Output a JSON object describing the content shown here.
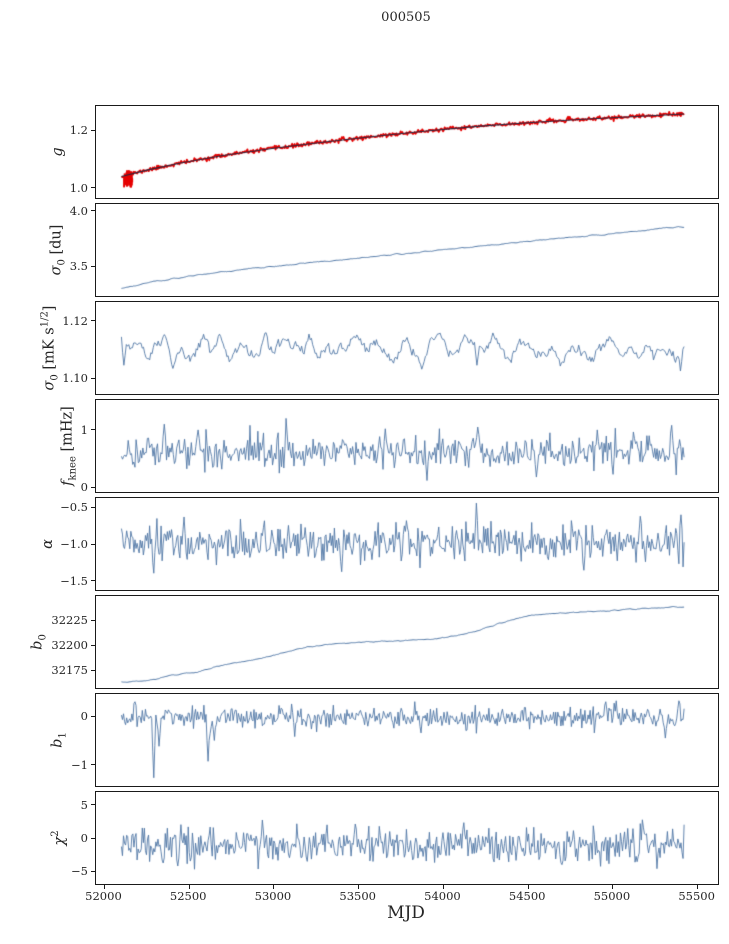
{
  "chart_data": {
    "type": "line",
    "title": "000505",
    "xlabel": "MJD",
    "grid": false,
    "legend": "none",
    "xlim": [
      51950,
      55620
    ],
    "x_data_range": [
      52100,
      55420
    ],
    "xticks": [
      {
        "v": 52000,
        "label": "52000"
      },
      {
        "v": 52500,
        "label": "52500"
      },
      {
        "v": 53000,
        "label": "53000"
      },
      {
        "v": 53500,
        "label": "53500"
      },
      {
        "v": 54000,
        "label": "54000"
      },
      {
        "v": 54500,
        "label": "54500"
      },
      {
        "v": 55000,
        "label": "55000"
      },
      {
        "v": 55500,
        "label": "55500"
      }
    ],
    "panels": [
      {
        "id": "g",
        "ylabel": [
          {
            "t": "g",
            "s": "it"
          }
        ],
        "ylim": [
          0.965,
          1.285
        ],
        "yticks": [
          {
            "v": 1.2,
            "label": "1.2"
          },
          {
            "v": 1.0,
            "label": "1.0"
          }
        ],
        "series": [
          {
            "kind": "curve",
            "color": "#e60000",
            "lw": 1.8,
            "noise_std": 0.0035,
            "n": 680,
            "seed": 11,
            "points": [
              [
                52100,
                1.04
              ],
              [
                52250,
                1.062
              ],
              [
                52450,
                1.087
              ],
              [
                52700,
                1.113
              ],
              [
                53000,
                1.138
              ],
              [
                53300,
                1.16
              ],
              [
                53600,
                1.18
              ],
              [
                53900,
                1.198
              ],
              [
                54200,
                1.214
              ],
              [
                54500,
                1.227
              ],
              [
                54800,
                1.238
              ],
              [
                55050,
                1.246
              ],
              [
                55250,
                1.252
              ],
              [
                55420,
                1.257
              ]
            ]
          },
          {
            "kind": "cluster",
            "color": "#e60000",
            "x": 52140,
            "xjitter": 25,
            "y0": 1.0,
            "y1": 1.062,
            "n": 26,
            "seed": 7,
            "lw": 2
          },
          {
            "kind": "cluster",
            "color": "#e60000",
            "x": 55390,
            "xjitter": 20,
            "y0": 1.247,
            "y1": 1.263,
            "n": 9,
            "seed": 9,
            "lw": 2
          },
          {
            "kind": "curve",
            "color": "#26263e",
            "lw": 1.1,
            "noise_std": 0,
            "points": [
              [
                52100,
                1.04
              ],
              [
                52250,
                1.062
              ],
              [
                52450,
                1.087
              ],
              [
                52700,
                1.113
              ],
              [
                53000,
                1.138
              ],
              [
                53300,
                1.16
              ],
              [
                53600,
                1.18
              ],
              [
                53900,
                1.198
              ],
              [
                54200,
                1.214
              ],
              [
                54500,
                1.227
              ],
              [
                54800,
                1.238
              ],
              [
                55050,
                1.246
              ],
              [
                55250,
                1.252
              ],
              [
                55420,
                1.257
              ]
            ]
          }
        ]
      },
      {
        "id": "sigma0-du",
        "ylabel": [
          {
            "t": "σ",
            "s": "it"
          },
          {
            "t": "0",
            "s": "sub"
          },
          {
            "t": " [du]",
            "s": "n"
          }
        ],
        "ylim": [
          3.23,
          4.06
        ],
        "yticks": [
          {
            "v": 4.0,
            "label": "4.0"
          },
          {
            "v": 3.5,
            "label": "3.5"
          }
        ],
        "series": [
          {
            "kind": "curve",
            "color": "#4f76a5",
            "lw": 1,
            "noise_std": 0.006,
            "n": 520,
            "seed": 21,
            "smooth": 2,
            "points": [
              [
                52100,
                3.3
              ],
              [
                52300,
                3.36
              ],
              [
                52550,
                3.42
              ],
              [
                52850,
                3.475
              ],
              [
                53150,
                3.52
              ],
              [
                53450,
                3.565
              ],
              [
                53750,
                3.61
              ],
              [
                54050,
                3.655
              ],
              [
                54350,
                3.7
              ],
              [
                54650,
                3.745
              ],
              [
                54950,
                3.785
              ],
              [
                55150,
                3.815
              ],
              [
                55320,
                3.845
              ],
              [
                55420,
                3.85
              ]
            ]
          }
        ]
      },
      {
        "id": "sigma0-mk",
        "ylabel": [
          {
            "t": "σ",
            "s": "it"
          },
          {
            "t": "0",
            "s": "sub"
          },
          {
            "t": " [mK s",
            "s": "n"
          },
          {
            "t": "1/2",
            "s": "sup"
          },
          {
            "t": "]",
            "s": "n"
          }
        ],
        "ylim": [
          1.0945,
          1.1265
        ],
        "yticks": [
          {
            "v": 1.12,
            "label": "1.12"
          },
          {
            "v": 1.1,
            "label": "1.10"
          }
        ],
        "series": [
          {
            "kind": "noise",
            "color": "#4f76a5",
            "lw": 0.9,
            "mean": 1.1105,
            "std": 0.0026,
            "n": 460,
            "seed": 31,
            "smooth": 3,
            "xrange": [
              52100,
              55420
            ],
            "spikes": [
              [
                52115,
                1.1045
              ],
              [
                54200,
                1.1045
              ],
              [
                55370,
                1.1055
              ],
              [
                55400,
                1.1025
              ]
            ]
          }
        ]
      },
      {
        "id": "fknee",
        "ylabel": [
          {
            "t": "f",
            "s": "it"
          },
          {
            "t": "knee",
            "s": "sub"
          },
          {
            "t": " [mHz]",
            "s": "n"
          }
        ],
        "ylim": [
          -0.08,
          1.52
        ],
        "yticks": [
          {
            "v": 1,
            "label": "1"
          },
          {
            "v": 0,
            "label": "0"
          }
        ],
        "series": [
          {
            "kind": "noise",
            "color": "#4f76a5",
            "lw": 0.9,
            "mean": 0.62,
            "std": 0.14,
            "n": 500,
            "seed": 41,
            "smooth": 0,
            "xrange": [
              52100,
              55420
            ],
            "spikes": [
              [
                52350,
                1.1
              ],
              [
                52550,
                1.0
              ],
              [
                53070,
                1.2
              ],
              [
                53660,
                1.02
              ],
              [
                54200,
                1.05
              ],
              [
                54910,
                1.0
              ],
              [
                55350,
                1.08
              ],
              [
                53900,
                0.12
              ],
              [
                54550,
                0.18
              ]
            ]
          }
        ]
      },
      {
        "id": "alpha",
        "ylabel": [
          {
            "t": "α",
            "s": "it"
          }
        ],
        "ylim": [
          -1.63,
          -0.37
        ],
        "yticks": [
          {
            "v": -0.5,
            "label": "−0.5"
          },
          {
            "v": -1.0,
            "label": "−1.0"
          },
          {
            "v": -1.5,
            "label": "−1.5"
          }
        ],
        "series": [
          {
            "kind": "noise",
            "color": "#4f76a5",
            "lw": 0.9,
            "mean": -1.0,
            "std": 0.12,
            "n": 540,
            "seed": 51,
            "smooth": 0,
            "xrange": [
              52100,
              55420
            ],
            "spikes": [
              [
                52290,
                -1.4
              ],
              [
                52470,
                -0.63
              ],
              [
                53400,
                -1.38
              ],
              [
                53780,
                -0.68
              ],
              [
                54195,
                -0.44
              ],
              [
                54830,
                -1.36
              ],
              [
                55160,
                -0.62
              ],
              [
                55400,
                -0.6
              ]
            ]
          }
        ]
      },
      {
        "id": "b0",
        "ylabel": [
          {
            "t": "b",
            "s": "it"
          },
          {
            "t": "0",
            "s": "sub"
          }
        ],
        "ylim": [
          32157,
          32249
        ],
        "yticks": [
          {
            "v": 32225,
            "label": "32225"
          },
          {
            "v": 32200,
            "label": "32200"
          },
          {
            "v": 32175,
            "label": "32175"
          }
        ],
        "series": [
          {
            "kind": "curve",
            "color": "#4f76a5",
            "lw": 1,
            "noise_std": 0.6,
            "n": 520,
            "seed": 61,
            "smooth": 2,
            "points": [
              [
                52100,
                32163
              ],
              [
                52250,
                32164
              ],
              [
                52400,
                32170
              ],
              [
                52550,
                32173
              ],
              [
                52700,
                32180
              ],
              [
                52900,
                32186
              ],
              [
                53050,
                32192
              ],
              [
                53200,
                32198
              ],
              [
                53350,
                32201
              ],
              [
                53550,
                32203
              ],
              [
                53750,
                32204
              ],
              [
                53950,
                32206
              ],
              [
                54100,
                32210
              ],
              [
                54200,
                32214
              ],
              [
                54300,
                32220
              ],
              [
                54400,
                32225
              ],
              [
                54500,
                32229
              ],
              [
                54650,
                32232
              ],
              [
                54850,
                32233
              ],
              [
                55050,
                32235
              ],
              [
                55250,
                32237
              ],
              [
                55420,
                32238
              ]
            ]
          }
        ]
      },
      {
        "id": "b1",
        "ylabel": [
          {
            "t": "b",
            "s": "it"
          },
          {
            "t": "1",
            "s": "sub"
          }
        ],
        "ylim": [
          -1.44,
          0.46
        ],
        "yticks": [
          {
            "v": 0,
            "label": "0"
          },
          {
            "v": -1,
            "label": "−1"
          }
        ],
        "series": [
          {
            "kind": "noise",
            "color": "#4f76a5",
            "lw": 0.9,
            "mean": -0.02,
            "std": 0.11,
            "n": 540,
            "seed": 71,
            "smooth": 0,
            "xrange": [
              52100,
              55420
            ],
            "spikes": [
              [
                52180,
                0.3
              ],
              [
                52290,
                -1.27
              ],
              [
                52320,
                -0.62
              ],
              [
                52610,
                -0.93
              ],
              [
                52650,
                -0.5
              ],
              [
                53120,
                -0.42
              ],
              [
                54960,
                0.3
              ],
              [
                55310,
                -0.45
              ],
              [
                55390,
                0.32
              ]
            ]
          }
        ]
      },
      {
        "id": "chi2",
        "ylabel": [
          {
            "t": "χ",
            "s": "it"
          },
          {
            "t": "2",
            "s": "sup"
          }
        ],
        "ylim": [
          -6.9,
          6.9
        ],
        "yticks": [
          {
            "v": 5,
            "label": "5"
          },
          {
            "v": 0,
            "label": "0"
          },
          {
            "v": -5,
            "label": "−5"
          }
        ],
        "series": [
          {
            "kind": "noise",
            "color": "#4f76a5",
            "lw": 0.9,
            "mean": -1.0,
            "std": 1.25,
            "n": 540,
            "seed": 81,
            "smooth": 0,
            "xrange": [
              52100,
              55420
            ],
            "spikes": [
              [
                52430,
                -4.2
              ],
              [
                52930,
                2.7
              ],
              [
                53480,
                2.1
              ],
              [
                54120,
                2.3
              ],
              [
                54700,
                -4.0
              ],
              [
                55260,
                -4.6
              ]
            ]
          }
        ]
      }
    ],
    "colors": {
      "series_blue": "#4f76a5",
      "marker_red": "#e60000",
      "fit_line_dark": "#26263e",
      "axis": "#1a1a1a",
      "text": "#262626"
    }
  }
}
